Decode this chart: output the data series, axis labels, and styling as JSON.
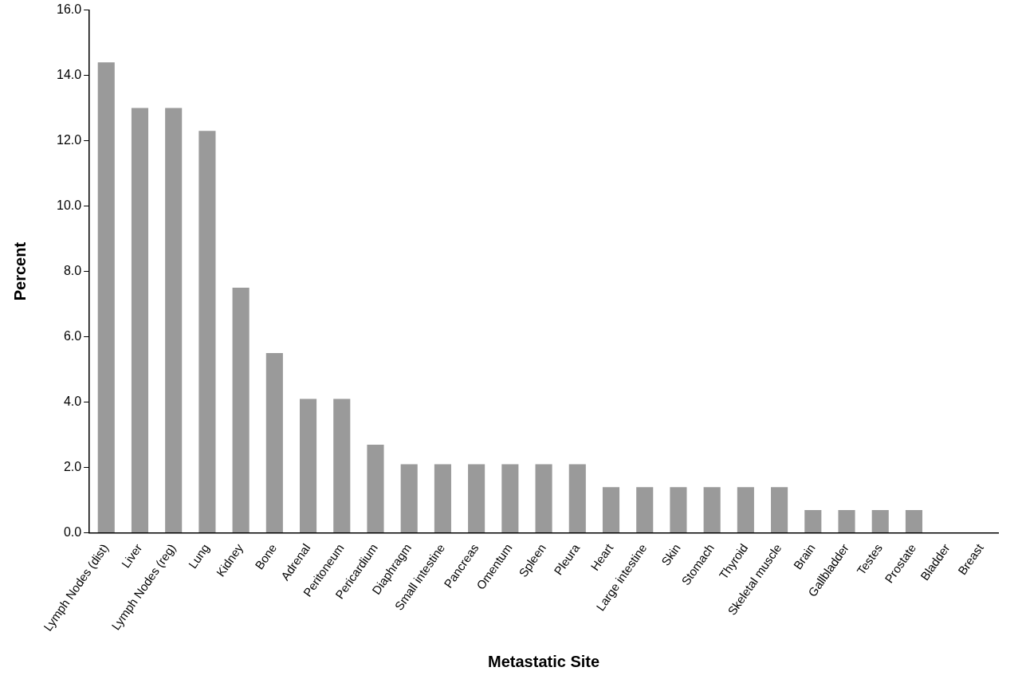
{
  "chart_data": {
    "type": "bar",
    "xlabel": "Metastatic Site",
    "ylabel": "Percent",
    "categories": [
      "Lymph Nodes (dist)",
      "Liver",
      "Lymph Nodes (reg)",
      "Lung",
      "Kidney",
      "Bone",
      "Adrenal",
      "Peritoneum",
      "Pericardium",
      "Diaphragm",
      "Small intestine",
      "Pancreas",
      "Omentum",
      "Spleen",
      "Pleura",
      "Heart",
      "Large intestine",
      "Skin",
      "Stomach",
      "Thyroid",
      "Skeletal muscle",
      "Brain",
      "Gallbladder",
      "Testes",
      "Prostate",
      "Bladder",
      "Breast"
    ],
    "values": [
      14.4,
      13.0,
      13.0,
      12.3,
      7.5,
      5.5,
      4.1,
      4.1,
      2.7,
      2.1,
      2.1,
      2.1,
      2.1,
      2.1,
      2.1,
      1.4,
      1.4,
      1.4,
      1.4,
      1.4,
      1.4,
      0.7,
      0.7,
      0.7,
      0.7,
      0,
      0
    ],
    "color": "#9a9a9a",
    "ylim": [
      0,
      16
    ],
    "yticks": [
      {
        "value": 0,
        "label": "0.0"
      },
      {
        "value": 2,
        "label": "2.0"
      },
      {
        "value": 4,
        "label": "4.0"
      },
      {
        "value": 6,
        "label": "6.0"
      },
      {
        "value": 8,
        "label": "8.0"
      },
      {
        "value": 10,
        "label": "10.0"
      },
      {
        "value": 12,
        "label": "12.0"
      },
      {
        "value": 14,
        "label": "14.0"
      },
      {
        "value": 16,
        "label": "16.0"
      }
    ]
  }
}
